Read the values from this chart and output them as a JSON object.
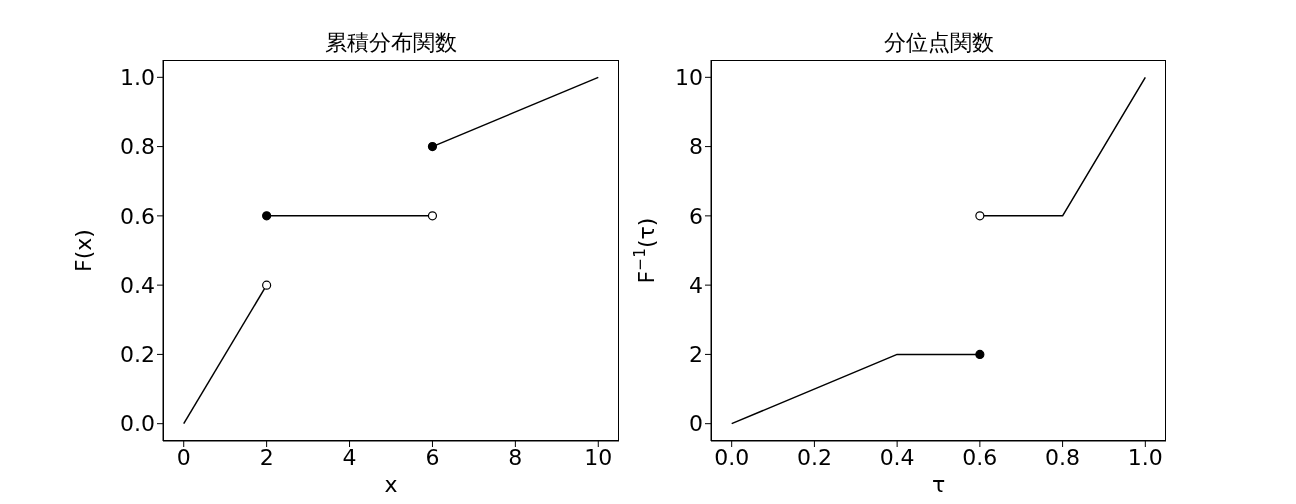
{
  "chart_data": [
    {
      "type": "line",
      "title": "累積分布関数",
      "xlabel": "x",
      "ylabel": "F(x)",
      "xlim": [
        -0.5,
        10.5
      ],
      "ylim": [
        -0.05,
        1.05
      ],
      "xticks": [
        0,
        2,
        4,
        6,
        8,
        10
      ],
      "yticks": [
        {
          "value": 0,
          "label": "0.0"
        },
        {
          "value": 0.2,
          "label": "0.2"
        },
        {
          "value": 0.4,
          "label": "0.4"
        },
        {
          "value": 0.6,
          "label": "0.6"
        },
        {
          "value": 0.8,
          "label": "0.8"
        },
        {
          "value": 1,
          "label": "1.0"
        }
      ],
      "grid": false,
      "series": [
        {
          "color": "#000000",
          "x": [
            0,
            2
          ],
          "values": [
            0,
            0.4
          ]
        },
        {
          "color": "#000000",
          "x": [
            2,
            6
          ],
          "values": [
            0.6,
            0.6
          ]
        },
        {
          "color": "#000000",
          "x": [
            6,
            10
          ],
          "values": [
            0.8,
            1.0
          ]
        },
        {
          "type": "scatter",
          "marker": "circle",
          "color": "#ffffff",
          "x": [
            2,
            6
          ],
          "values": [
            0.4,
            0.6
          ]
        },
        {
          "type": "scatter",
          "marker": "circle",
          "color": "#000000",
          "x": [
            2,
            6
          ],
          "values": [
            0.6,
            0.8
          ]
        }
      ]
    },
    {
      "type": "line",
      "title": "分位点関数",
      "xlabel": "τ",
      "ylabel": "F$^{−1}$(τ)",
      "xlim": [
        -0.05,
        1.05
      ],
      "ylim": [
        -0.5,
        10.5
      ],
      "xticks": [
        {
          "value": 0,
          "label": "0.0"
        },
        {
          "value": 0.2,
          "label": "0.2"
        },
        {
          "value": 0.4,
          "label": "0.4"
        },
        {
          "value": 0.6,
          "label": "0.6"
        },
        {
          "value": 0.8,
          "label": "0.8"
        },
        {
          "value": 1,
          "label": "1.0"
        }
      ],
      "yticks": [
        0,
        2,
        4,
        6,
        8,
        10
      ],
      "grid": false,
      "series": [
        {
          "color": "#000000",
          "x": [
            0,
            0.4,
            0.6
          ],
          "values": [
            0,
            2,
            2
          ]
        },
        {
          "color": "#000000",
          "x": [
            0.6,
            0.8,
            0.9,
            1.0
          ],
          "values": [
            6,
            6,
            8,
            10
          ]
        },
        {
          "type": "scatter",
          "marker": "circle",
          "color": "#ffffff",
          "x": [
            0.6
          ],
          "values": [
            6
          ]
        },
        {
          "type": "scatter",
          "marker": "circle",
          "color": "#000000",
          "x": [
            0.6
          ],
          "values": [
            2
          ]
        }
      ]
    }
  ]
}
